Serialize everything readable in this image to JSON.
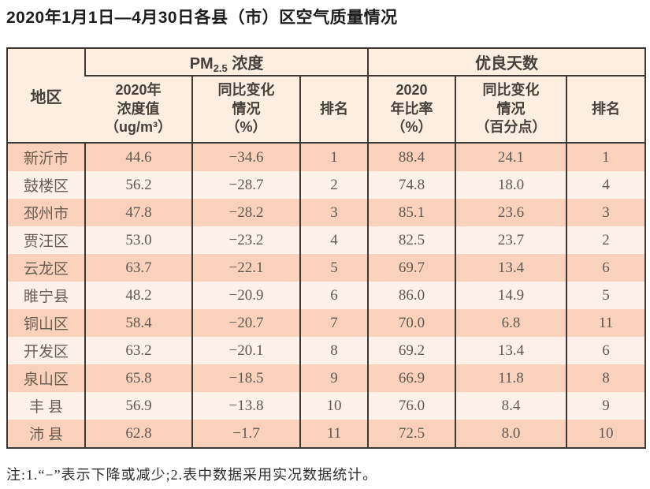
{
  "title": "2020年1月1日—4月30日各县（市）区空气质量情况",
  "note": "注:1.“−”表示下降或减少;2.表中数据采用实况数据统计。",
  "colors": {
    "header_bg": "#fcefe2",
    "row_odd_bg": "#fad2bc",
    "row_even_bg": "#fdf1ea",
    "border": "#3d3833",
    "data_text": "#615850"
  },
  "table": {
    "header": {
      "region": "地区",
      "pm_group_prefix": "PM",
      "pm_group_sub": "2.5",
      "pm_group_suffix": " 浓度",
      "good_days_group": "优良天数",
      "pm_value_lines": [
        "2020年",
        "浓度值",
        "（ug/m³）"
      ],
      "pm_change_lines": [
        "同比变化",
        "情况",
        "（%）"
      ],
      "pm_rank": "排名",
      "ratio_lines": [
        "2020",
        "年比率",
        "（%）"
      ],
      "ratio_change_lines": [
        "同比变化",
        "情况",
        "（百分点）"
      ],
      "good_rank": "排名"
    },
    "rows": [
      {
        "region": "新沂市",
        "pm_value": "44.6",
        "pm_change": "−34.6",
        "pm_rank": "1",
        "ratio": "88.4",
        "ratio_change": "24.1",
        "good_rank": "1"
      },
      {
        "region": "鼓楼区",
        "pm_value": "56.2",
        "pm_change": "−28.7",
        "pm_rank": "2",
        "ratio": "74.8",
        "ratio_change": "18.0",
        "good_rank": "4"
      },
      {
        "region": "邳州市",
        "pm_value": "47.8",
        "pm_change": "−28.2",
        "pm_rank": "3",
        "ratio": "85.1",
        "ratio_change": "23.6",
        "good_rank": "3"
      },
      {
        "region": "贾汪区",
        "pm_value": "53.0",
        "pm_change": "−23.2",
        "pm_rank": "4",
        "ratio": "82.5",
        "ratio_change": "23.7",
        "good_rank": "2"
      },
      {
        "region": "云龙区",
        "pm_value": "63.7",
        "pm_change": "−22.1",
        "pm_rank": "5",
        "ratio": "69.7",
        "ratio_change": "13.4",
        "good_rank": "6"
      },
      {
        "region": "睢宁县",
        "pm_value": "48.2",
        "pm_change": "−20.9",
        "pm_rank": "6",
        "ratio": "86.0",
        "ratio_change": "14.9",
        "good_rank": "5"
      },
      {
        "region": "铜山区",
        "pm_value": "58.4",
        "pm_change": "−20.7",
        "pm_rank": "7",
        "ratio": "70.0",
        "ratio_change": "6.8",
        "good_rank": "11"
      },
      {
        "region": "开发区",
        "pm_value": "63.2",
        "pm_change": "−20.1",
        "pm_rank": "8",
        "ratio": "69.2",
        "ratio_change": "13.4",
        "good_rank": "6"
      },
      {
        "region": "泉山区",
        "pm_value": "65.8",
        "pm_change": "−18.5",
        "pm_rank": "9",
        "ratio": "66.9",
        "ratio_change": "11.8",
        "good_rank": "8"
      },
      {
        "region": "丰 县",
        "pm_value": "56.9",
        "pm_change": "−13.8",
        "pm_rank": "10",
        "ratio": "76.0",
        "ratio_change": "8.4",
        "good_rank": "9"
      },
      {
        "region": "沛 县",
        "pm_value": "62.8",
        "pm_change": "−1.7",
        "pm_rank": "11",
        "ratio": "72.5",
        "ratio_change": "8.0",
        "good_rank": "10"
      }
    ]
  }
}
